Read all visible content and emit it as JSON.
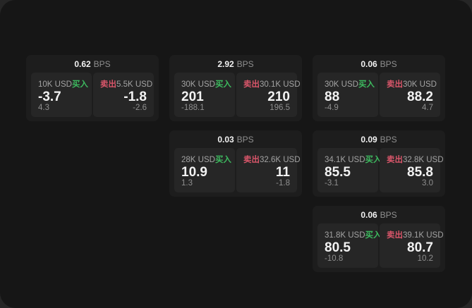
{
  "colors": {
    "page_bg": "#262626",
    "panel_bg": "#161616",
    "card_bg": "#1d1d1d",
    "tile_bg": "#262626",
    "text_primary": "#f2f2f2",
    "text_muted": "#a3a3a3",
    "text_faint": "#8f8f8f",
    "buy_green": "#3dba5f",
    "sell_red": "#d9566a"
  },
  "labels": {
    "bps": "BPS",
    "buy": "买入",
    "sell": "卖出"
  },
  "cards": [
    {
      "col": 1,
      "row": 1,
      "bps": "0.62",
      "buy": {
        "notional": "10K USD",
        "value": "-3.7",
        "delta": "4.3"
      },
      "sell": {
        "notional": "5.5K USD",
        "value": "-1.8",
        "delta": "-2.6"
      }
    },
    {
      "col": 2,
      "row": 1,
      "bps": "2.92",
      "buy": {
        "notional": "30K USD",
        "value": "201",
        "delta": "-188.1"
      },
      "sell": {
        "notional": "30.1K USD",
        "value": "210",
        "delta": "196.5"
      }
    },
    {
      "col": 3,
      "row": 1,
      "bps": "0.06",
      "buy": {
        "notional": "30K USD",
        "value": "88",
        "delta": "-4.9"
      },
      "sell": {
        "notional": "30K USD",
        "value": "88.2",
        "delta": "4.7"
      }
    },
    {
      "col": 2,
      "row": 2,
      "bps": "0.03",
      "buy": {
        "notional": "28K USD",
        "value": "10.9",
        "delta": "1.3"
      },
      "sell": {
        "notional": "32.6K USD",
        "value": "11",
        "delta": "-1.8"
      }
    },
    {
      "col": 3,
      "row": 2,
      "bps": "0.09",
      "buy": {
        "notional": "34.1K USD",
        "value": "85.5",
        "delta": "-3.1"
      },
      "sell": {
        "notional": "32.8K USD",
        "value": "85.8",
        "delta": "3.0"
      }
    },
    {
      "col": 3,
      "row": 3,
      "bps": "0.06",
      "buy": {
        "notional": "31.8K USD",
        "value": "80.5",
        "delta": "-10.8"
      },
      "sell": {
        "notional": "39.1K USD",
        "value": "80.7",
        "delta": "10.2"
      }
    }
  ]
}
